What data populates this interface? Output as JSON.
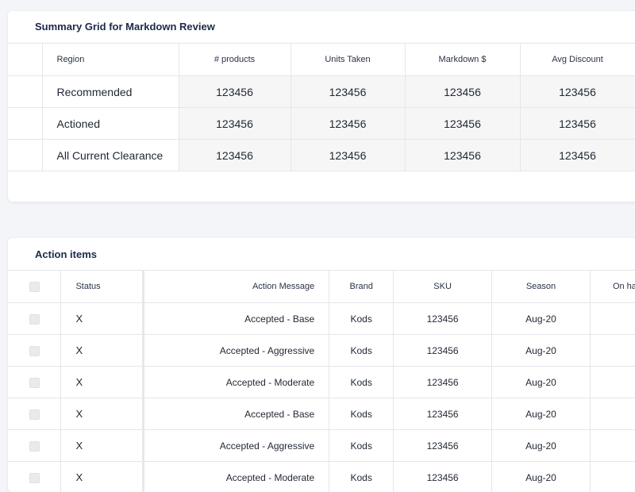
{
  "summary": {
    "title": "Summary Grid for Markdown Review",
    "headers": [
      "Region",
      "# products",
      "Units Taken",
      "Markdown $",
      "Avg Discount"
    ],
    "rows": [
      {
        "label": "Recommended",
        "values": [
          "123456",
          "123456",
          "123456",
          "123456"
        ]
      },
      {
        "label": "Actioned",
        "values": [
          "123456",
          "123456",
          "123456",
          "123456"
        ]
      },
      {
        "label": "All Current Clearance",
        "values": [
          "123456",
          "123456",
          "123456",
          "123456"
        ]
      }
    ]
  },
  "action_items": {
    "title": "Action items",
    "headers": [
      "Status",
      "Action Message",
      "Brand",
      "SKU",
      "Season",
      "On ha"
    ],
    "rows": [
      {
        "status": "X",
        "message": "Accepted - Base",
        "brand": "Kods",
        "sku": "123456",
        "season": "Aug-20"
      },
      {
        "status": "X",
        "message": "Accepted - Aggressive",
        "brand": "Kods",
        "sku": "123456",
        "season": "Aug-20"
      },
      {
        "status": "X",
        "message": "Accepted - Moderate",
        "brand": "Kods",
        "sku": "123456",
        "season": "Aug-20"
      },
      {
        "status": "X",
        "message": "Accepted - Base",
        "brand": "Kods",
        "sku": "123456",
        "season": "Aug-20"
      },
      {
        "status": "X",
        "message": "Accepted - Aggressive",
        "brand": "Kods",
        "sku": "123456",
        "season": "Aug-20"
      },
      {
        "status": "X",
        "message": "Accepted - Moderate",
        "brand": "Kods",
        "sku": "123456",
        "season": "Aug-20"
      }
    ]
  }
}
